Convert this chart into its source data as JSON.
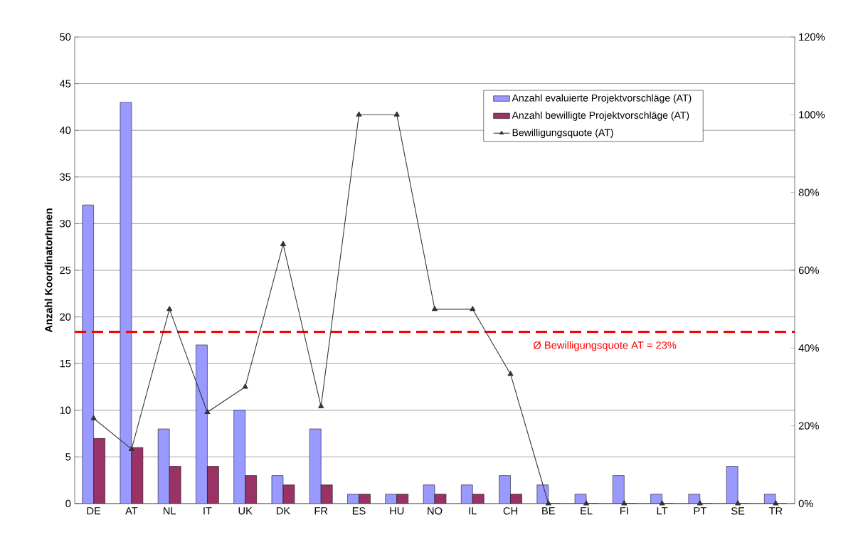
{
  "chart_data": {
    "type": "bar",
    "ylabel": "Anzahl KoordinatorInnen",
    "categories": [
      "DE",
      "AT",
      "NL",
      "IT",
      "UK",
      "DK",
      "FR",
      "ES",
      "HU",
      "NO",
      "IL",
      "CH",
      "BE",
      "EL",
      "FI",
      "LT",
      "PT",
      "SE",
      "TR"
    ],
    "series": [
      {
        "name": "Anzahl evaluierte Projektvorschläge (AT)",
        "color": "#9999ff",
        "values": [
          32,
          43,
          8,
          17,
          10,
          3,
          8,
          1,
          1,
          2,
          2,
          3,
          2,
          1,
          3,
          1,
          1,
          4,
          1
        ]
      },
      {
        "name": "Anzahl bewilligte Projektvorschläge (AT)",
        "color": "#993366",
        "values": [
          7,
          6,
          4,
          4,
          3,
          2,
          2,
          1,
          1,
          1,
          1,
          1,
          0,
          0,
          0,
          0,
          0,
          0,
          0
        ]
      },
      {
        "name": "Bewilligungsquote (AT)",
        "type": "line",
        "axis": "y2",
        "color": "#333333",
        "marker": "triangle",
        "line_style": "solid",
        "values": [
          21.9,
          14,
          50,
          23.5,
          30,
          66.7,
          25,
          100,
          100,
          50,
          50,
          33.3,
          0,
          0,
          0,
          0,
          0,
          0,
          0
        ]
      }
    ],
    "ylim": [
      0,
      50
    ],
    "yticks": [
      0,
      5,
      10,
      15,
      20,
      25,
      30,
      35,
      40,
      45,
      50
    ],
    "y2lim": [
      0,
      120
    ],
    "y2ticks": [
      {
        "value": 0,
        "label": "0%"
      },
      {
        "value": 20,
        "label": "20%"
      },
      {
        "value": 40,
        "label": "40%"
      },
      {
        "value": 60,
        "label": "60%"
      },
      {
        "value": 80,
        "label": "80%"
      },
      {
        "value": 100,
        "label": "100%"
      },
      {
        "value": 120,
        "label": "120%"
      }
    ],
    "ref_lines": [
      {
        "axis": "y",
        "value": 18.4,
        "color": "#ff0000",
        "line_style": "dashed"
      }
    ],
    "annotations": [
      "Ø Bewilligungsquote AT = 23%"
    ],
    "grid": "y",
    "legend": "top right"
  }
}
